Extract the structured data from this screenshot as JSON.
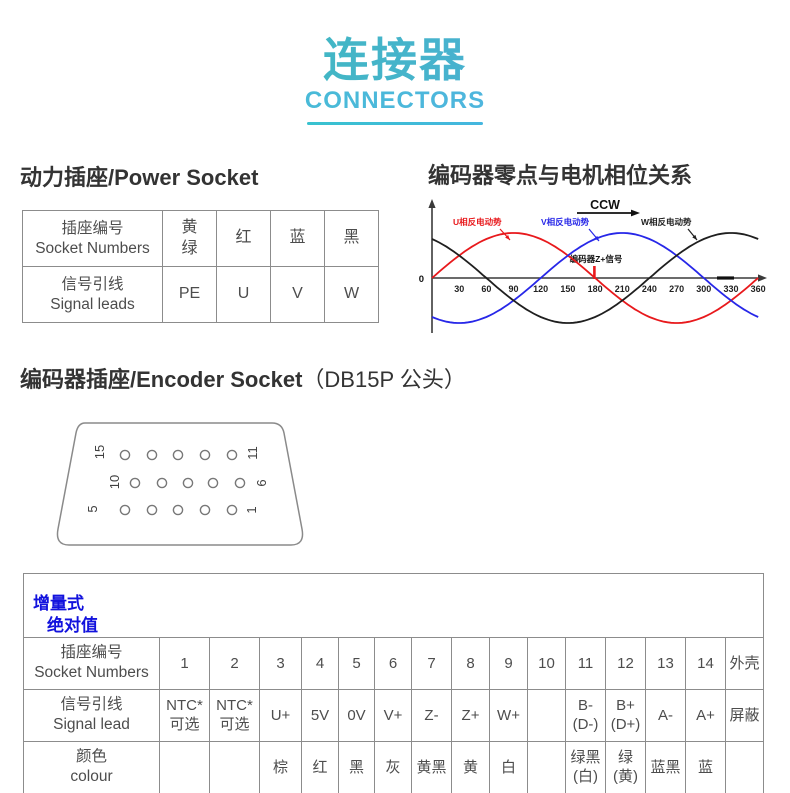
{
  "page_title": {
    "zh": "连接器",
    "en": "CONNECTORS"
  },
  "colors": {
    "accent_teal": "#35bfae",
    "accent_blue": "#55a9e6",
    "underline_cyan": "#3ac2d4",
    "link_blue": "#1212dd",
    "series_u_red": "#e8191c",
    "series_v_blue": "#2727e8",
    "series_w_black": "#1f1f1f"
  },
  "sections": {
    "power": {
      "heading": "动力插座/Power Socket",
      "table": {
        "rows": [
          {
            "label": "插座编号\nSocket Numbers",
            "cells": [
              "黄\n绿",
              "红",
              "蓝",
              "黑"
            ]
          },
          {
            "label": "信号引线\nSignal leads",
            "cells": [
              "PE",
              "U",
              "V",
              "W"
            ]
          }
        ]
      }
    },
    "phase": {
      "heading": "编码器零点与电机相位关系"
    },
    "encoder": {
      "heading_main": "编码器插座/Encoder Socket",
      "heading_sub": "（DB15P 公头）",
      "db15": {
        "row_labels": [
          [
            "15",
            "11"
          ],
          [
            "10",
            "6"
          ],
          [
            "5",
            "1"
          ]
        ],
        "pins_per_row": 5
      },
      "table": {
        "tabs": [
          "增量式",
          "绝对值"
        ],
        "rows": [
          {
            "label": "插座编号\nSocket Numbers",
            "cells": [
              "1",
              "2",
              "3",
              "4",
              "5",
              "6",
              "7",
              "8",
              "9",
              "10",
              "11",
              "12",
              "13",
              "14",
              "外壳"
            ]
          },
          {
            "label": "信号引线\nSignal lead",
            "cells": [
              "NTC*\n可选",
              "NTC*\n可选",
              "U+",
              "5V",
              "0V",
              "V+",
              "Z-",
              "Z+",
              "W+",
              "",
              "B-\n(D-)",
              "B+\n(D+)",
              "A-",
              "A+",
              "屏蔽"
            ]
          },
          {
            "label": "颜色\ncolour",
            "cells": [
              "",
              "",
              "棕",
              "红",
              "黑",
              "灰",
              "黄黑",
              "黄",
              "白",
              "",
              "绿黑\n(白)",
              "绿\n(黄)",
              "蓝黑",
              "蓝",
              ""
            ]
          }
        ]
      }
    }
  },
  "chart_data": {
    "type": "line",
    "title": "编码器零点与电机相位关系",
    "xlabel": "",
    "ylabel": "",
    "x_range": [
      0,
      360
    ],
    "y_range": [
      -1,
      1
    ],
    "grid": false,
    "x_ticks": [
      30,
      60,
      90,
      120,
      150,
      180,
      210,
      240,
      270,
      300,
      330,
      360
    ],
    "series": [
      {
        "name": "U相反电动势",
        "color": "#e8191c",
        "waveform": "sine",
        "amplitude": 1,
        "phase_deg": 0
      },
      {
        "name": "V相反电动势",
        "color": "#2727e8",
        "waveform": "sine",
        "amplitude": 1,
        "phase_deg": -120
      },
      {
        "name": "W相反电动势",
        "color": "#1f1f1f",
        "waveform": "sine",
        "amplitude": 1,
        "phase_deg": 120
      }
    ],
    "annotations": {
      "direction_label": "CCW",
      "zero_label": "0",
      "z_marker": {
        "x_deg": 180,
        "label": "编码器Z+信号",
        "color": "#e8191c"
      }
    }
  }
}
